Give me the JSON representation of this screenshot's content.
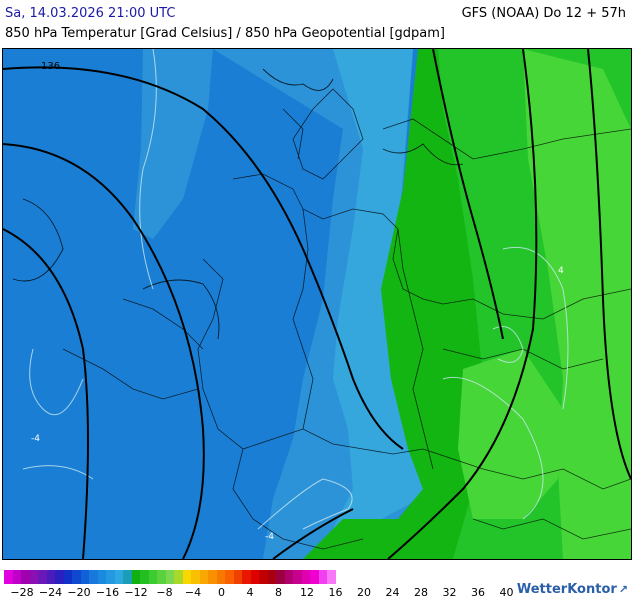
{
  "header": {
    "valid_time": "Sa, 14.03.2026 21:00 UTC",
    "model_run": "GFS (NOAA) Do 12 + 57h",
    "subtitle": "850 hPa Temperatur [Grad Celsius] / 850 hPa Geopotential [gdpam]"
  },
  "map": {
    "geopotential_labels": [
      "136"
    ],
    "isotherm_labels": [
      "-4",
      "-4",
      "4"
    ],
    "colors": {
      "cold_blue": "#1a7fd4",
      "mid_blue": "#2d93d8",
      "light_blue": "#35a7dd",
      "green_dark": "#13b513",
      "green_mid": "#22c42a",
      "green_light": "#46d638"
    }
  },
  "legend": {
    "ticks": [
      "−28",
      "−24",
      "−20",
      "−16",
      "−12",
      "−8",
      "−4",
      "0",
      "4",
      "8",
      "12",
      "16",
      "20",
      "24",
      "28",
      "32",
      "36",
      "40"
    ],
    "colors": [
      "#e000e0",
      "#c000c8",
      "#a000b0",
      "#8a10b4",
      "#6a18b8",
      "#4a1cbc",
      "#2a20c0",
      "#1030c8",
      "#1048d0",
      "#1060d8",
      "#1878dc",
      "#1a8ae0",
      "#2498e0",
      "#2ea8e0",
      "#1a9eb8",
      "#10b010",
      "#22be22",
      "#3ccc30",
      "#5ad240",
      "#7ad850",
      "#aad828",
      "#f8d800",
      "#f8c000",
      "#f8a800",
      "#f89000",
      "#f87800",
      "#f86000",
      "#f04000",
      "#e81800",
      "#e00000",
      "#c00000",
      "#a80010",
      "#9c0040",
      "#b00070",
      "#c80090",
      "#e000b0",
      "#f000d0",
      "#f040f0",
      "#f878f8"
    ]
  },
  "brand": {
    "name": "WetterKontor",
    "icon": "kontor-logo-icon"
  }
}
